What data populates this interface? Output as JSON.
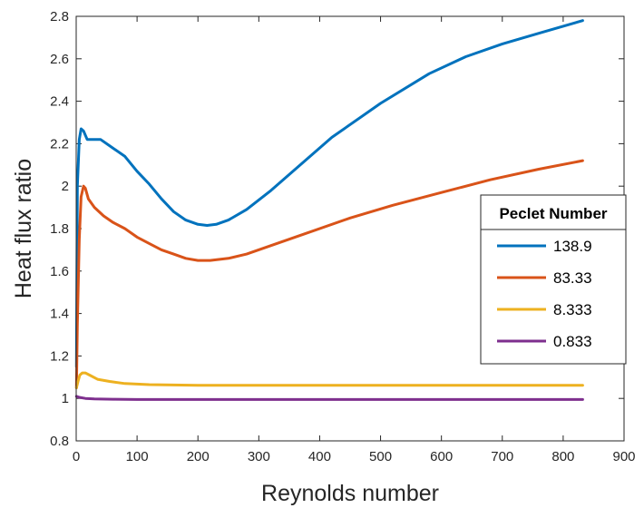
{
  "chart_data": {
    "type": "line",
    "title": "",
    "xlabel": "Reynolds number",
    "ylabel": "Heat flux ratio",
    "xlim": [
      0,
      900
    ],
    "ylim": [
      0.8,
      2.8
    ],
    "xticks": [
      "0",
      "100",
      "200",
      "300",
      "400",
      "500",
      "600",
      "700",
      "800",
      "900"
    ],
    "yticks": [
      "0.8",
      "1",
      "1.2",
      "1.4",
      "1.6",
      "1.8",
      "2",
      "2.2",
      "2.4",
      "2.6",
      "2.8"
    ],
    "grid": false,
    "legend": {
      "title": "Peclet Number",
      "placement": "right"
    },
    "series": [
      {
        "name": "138.9",
        "color": "#0072BD",
        "x": [
          0.5,
          2,
          5,
          8,
          12,
          18,
          25,
          40,
          60,
          80,
          100,
          120,
          140,
          160,
          180,
          200,
          215,
          230,
          250,
          280,
          320,
          360,
          420,
          500,
          580,
          640,
          700,
          760,
          832
        ],
        "y": [
          1.15,
          2.0,
          2.22,
          2.27,
          2.26,
          2.22,
          2.22,
          2.22,
          2.18,
          2.14,
          2.07,
          2.01,
          1.94,
          1.88,
          1.84,
          1.82,
          1.815,
          1.82,
          1.84,
          1.89,
          1.98,
          2.08,
          2.23,
          2.39,
          2.53,
          2.61,
          2.67,
          2.72,
          2.78
        ]
      },
      {
        "name": "83.33",
        "color": "#D95319",
        "x": [
          0.5,
          2,
          5,
          8,
          12,
          15,
          20,
          30,
          45,
          60,
          80,
          100,
          120,
          140,
          160,
          180,
          200,
          220,
          250,
          280,
          320,
          380,
          450,
          520,
          600,
          680,
          760,
          832
        ],
        "y": [
          1.05,
          1.35,
          1.75,
          1.95,
          2.0,
          1.99,
          1.94,
          1.9,
          1.86,
          1.83,
          1.8,
          1.76,
          1.73,
          1.7,
          1.68,
          1.66,
          1.65,
          1.65,
          1.66,
          1.68,
          1.72,
          1.78,
          1.85,
          1.91,
          1.97,
          2.03,
          2.08,
          2.12
        ]
      },
      {
        "name": "8.333",
        "color": "#EDB120",
        "x": [
          0.5,
          3,
          6,
          10,
          15,
          22,
          35,
          55,
          80,
          120,
          200,
          300,
          500,
          700,
          832
        ],
        "y": [
          1.05,
          1.08,
          1.11,
          1.12,
          1.12,
          1.11,
          1.09,
          1.08,
          1.07,
          1.065,
          1.062,
          1.062,
          1.062,
          1.062,
          1.062
        ]
      },
      {
        "name": "0.833",
        "color": "#7E2F8E",
        "x": [
          0.5,
          5,
          15,
          30,
          60,
          100,
          200,
          400,
          600,
          832
        ],
        "y": [
          1.01,
          1.005,
          1.0,
          0.998,
          0.996,
          0.995,
          0.995,
          0.995,
          0.995,
          0.995
        ]
      }
    ]
  }
}
